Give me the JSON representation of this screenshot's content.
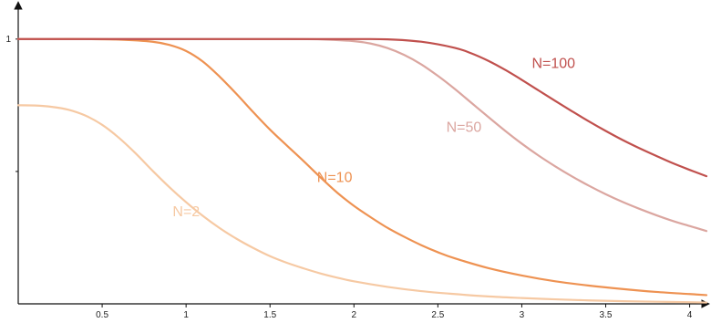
{
  "chart_data": {
    "type": "line",
    "title": "",
    "xlabel": "",
    "ylabel": "",
    "xlim": [
      0,
      4.1
    ],
    "ylim": [
      0,
      1.12
    ],
    "grid": false,
    "x_ticks": [
      0.5,
      1,
      1.5,
      2,
      2.5,
      3,
      3.5,
      4
    ],
    "x_tick_labels": [
      "0.5",
      "1",
      "1.5",
      "2",
      "2.5",
      "3",
      "3.5",
      "4"
    ],
    "y_ticks": [
      0.5,
      1
    ],
    "y_tick_labels": [
      "",
      "1"
    ],
    "series": [
      {
        "name": "N=2",
        "color": "#f6c9a3",
        "label_at": [
          0.92,
          0.33
        ],
        "x": [
          0,
          0.1,
          0.2,
          0.3,
          0.4,
          0.5,
          0.6,
          0.7,
          0.8,
          0.9,
          1.0,
          1.1,
          1.2,
          1.3,
          1.4,
          1.5,
          1.6,
          1.7,
          1.8,
          1.9,
          2.0,
          2.2,
          2.4,
          2.6,
          2.8,
          3.0,
          3.2,
          3.4,
          3.6,
          3.8,
          4.0,
          4.1
        ],
        "y": [
          0.75,
          0.749,
          0.744,
          0.733,
          0.711,
          0.676,
          0.627,
          0.568,
          0.503,
          0.441,
          0.384,
          0.332,
          0.286,
          0.246,
          0.211,
          0.18,
          0.155,
          0.134,
          0.115,
          0.099,
          0.085,
          0.064,
          0.048,
          0.037,
          0.028,
          0.022,
          0.017,
          0.013,
          0.01,
          0.008,
          0.006,
          0.005
        ]
      },
      {
        "name": "N=10",
        "color": "#ee9252",
        "label_at": [
          1.78,
          0.46
        ],
        "x": [
          0,
          0.2,
          0.4,
          0.6,
          0.8,
          0.9,
          1.0,
          1.1,
          1.2,
          1.3,
          1.4,
          1.5,
          1.6,
          1.7,
          1.8,
          1.9,
          2.0,
          2.1,
          2.2,
          2.3,
          2.4,
          2.5,
          2.6,
          2.8,
          3.0,
          3.2,
          3.4,
          3.6,
          3.8,
          4.0,
          4.1
        ],
        "y": [
          1.0,
          1.0,
          1.0,
          0.998,
          0.99,
          0.978,
          0.955,
          0.915,
          0.858,
          0.793,
          0.724,
          0.658,
          0.598,
          0.539,
          0.478,
          0.42,
          0.37,
          0.327,
          0.287,
          0.253,
          0.222,
          0.195,
          0.172,
          0.135,
          0.107,
          0.085,
          0.069,
          0.056,
          0.045,
          0.037,
          0.033
        ]
      },
      {
        "name": "N=50",
        "color": "#dba6a0",
        "label_at": [
          2.55,
          0.65
        ],
        "x": [
          0,
          0.5,
          1.0,
          1.5,
          1.8,
          2.0,
          2.1,
          2.2,
          2.3,
          2.4,
          2.5,
          2.6,
          2.7,
          2.8,
          2.9,
          3.0,
          3.1,
          3.2,
          3.3,
          3.4,
          3.5,
          3.6,
          3.7,
          3.8,
          3.9,
          4.0,
          4.1
        ],
        "y": [
          1.0,
          1.0,
          1.0,
          1.0,
          0.999,
          0.992,
          0.983,
          0.966,
          0.94,
          0.905,
          0.861,
          0.812,
          0.759,
          0.706,
          0.654,
          0.605,
          0.56,
          0.519,
          0.481,
          0.446,
          0.414,
          0.385,
          0.359,
          0.335,
          0.313,
          0.294,
          0.275
        ]
      },
      {
        "name": "N=100",
        "color": "#c0504d",
        "label_at": [
          3.06,
          0.89
        ],
        "x": [
          0,
          0.5,
          1.0,
          1.5,
          2.0,
          2.2,
          2.4,
          2.6,
          2.7,
          2.8,
          2.9,
          3.0,
          3.1,
          3.2,
          3.3,
          3.4,
          3.5,
          3.6,
          3.7,
          3.8,
          3.9,
          4.0,
          4.1
        ],
        "y": [
          1.0,
          1.0,
          1.0,
          1.0,
          1.0,
          0.999,
          0.99,
          0.967,
          0.946,
          0.918,
          0.884,
          0.846,
          0.806,
          0.766,
          0.727,
          0.689,
          0.653,
          0.619,
          0.588,
          0.559,
          0.531,
          0.506,
          0.482
        ]
      }
    ]
  }
}
